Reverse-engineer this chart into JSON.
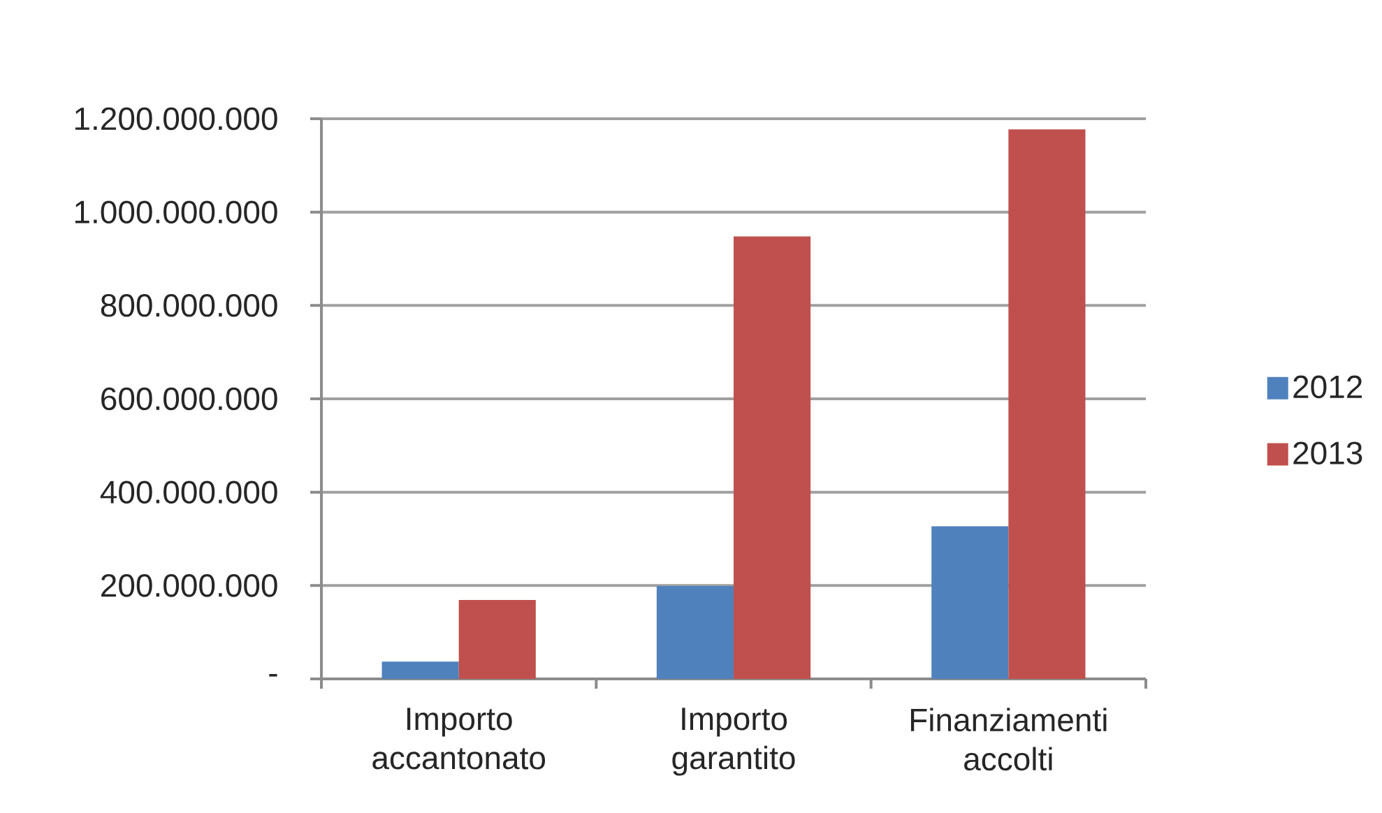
{
  "chart_data": {
    "type": "bar",
    "categories": [
      "Importo accantonato",
      "Importo garantito",
      "Finanziamenti accolti"
    ],
    "series": [
      {
        "name": "2012",
        "color": "#4f81bd",
        "values": [
          37000000,
          199000000,
          327000000
        ]
      },
      {
        "name": "2013",
        "color": "#c0504d",
        "values": [
          169000000,
          948000000,
          1177000000
        ]
      }
    ],
    "ylim": [
      0,
      1200000000
    ],
    "yticks": [
      {
        "value": 0,
        "label": "-"
      },
      {
        "value": 200000000,
        "label": "200.000.000"
      },
      {
        "value": 400000000,
        "label": "400.000.000"
      },
      {
        "value": 600000000,
        "label": "600.000.000"
      },
      {
        "value": 800000000,
        "label": "800.000.000"
      },
      {
        "value": 1000000000,
        "label": "1.000.000.000"
      },
      {
        "value": 1200000000,
        "label": "1.200.000.000"
      }
    ],
    "grid": "y",
    "legend": "right"
  }
}
